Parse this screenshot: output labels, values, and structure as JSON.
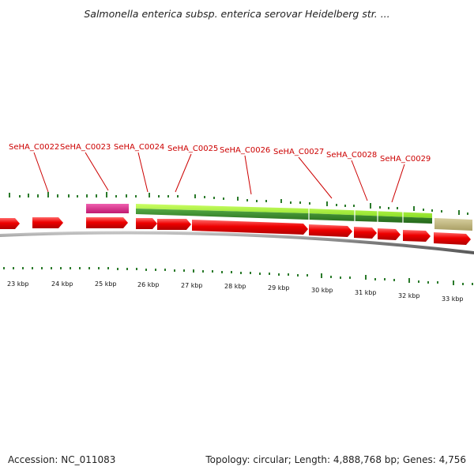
{
  "title": "Salmonella enterica subsp. enterica serovar Heidelberg str. ...",
  "footer": {
    "accession": "Accession: NC_011083",
    "summary": "Topology: circular; Length: 4,888,768 bp; Genes: 4,756"
  },
  "colors": {
    "gene_label": "#cc0000",
    "cds_arrow": "#ee0000",
    "trna_block": "#e0308a",
    "rrna_light": "#99ee22",
    "rrna_dark": "#338822",
    "misc_block": "#c8c08a",
    "backbone": "#888888",
    "tick": "#2a7a2a"
  },
  "scale_labels": [
    "23 kbp",
    "24 kbp",
    "25 kbp",
    "26 kbp",
    "27 kbp",
    "28 kbp",
    "29 kbp",
    "30 kbp",
    "31 kbp",
    "32 kbp",
    "33 kbp"
  ],
  "gene_labels": [
    "SeHA_C0022",
    "SeHA_C0023",
    "SeHA_C0024",
    "SeHA_C0025",
    "SeHA_C0026",
    "SeHA_C0027",
    "SeHA_C0028",
    "SeHA_C0029"
  ]
}
